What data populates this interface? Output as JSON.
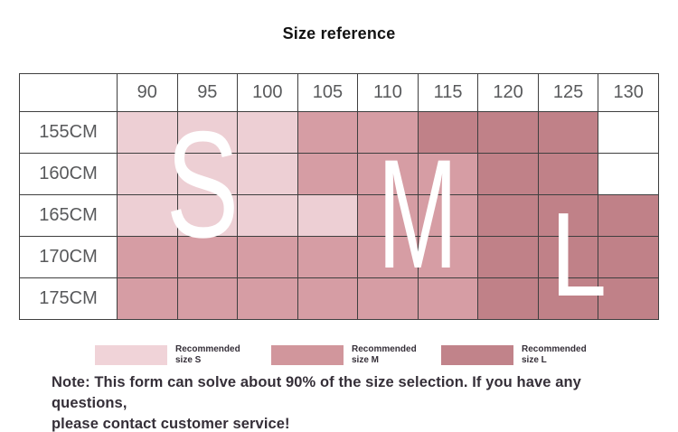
{
  "title": "Size reference",
  "chart_data": {
    "type": "heatmap",
    "title": "Size reference",
    "x_categories": [
      "90",
      "95",
      "100",
      "105",
      "110",
      "115",
      "120",
      "125",
      "130"
    ],
    "y_categories": [
      "155CM",
      "160CM",
      "165CM",
      "170CM",
      "175CM"
    ],
    "cells": [
      [
        "S",
        "S",
        "S",
        "M",
        "M",
        "L",
        "L",
        "L",
        null
      ],
      [
        "S",
        "S",
        "S",
        "M",
        "M",
        "M",
        "L",
        "L",
        null
      ],
      [
        "S",
        "S",
        "S",
        "S",
        "M",
        "M",
        "L",
        "L",
        "L"
      ],
      [
        "M",
        "M",
        "M",
        "M",
        "M",
        "M",
        "L",
        "L",
        "L"
      ],
      [
        "M",
        "M",
        "M",
        "M",
        "M",
        "M",
        "L",
        "L",
        "L"
      ]
    ],
    "legend_entries": [
      "Recommended size S",
      "Recommended size M",
      "Recommended size L"
    ],
    "grid": true,
    "legend_position": "bottom"
  },
  "overlay": {
    "letters": [
      "S",
      "M",
      "L"
    ]
  },
  "legend": [
    {
      "color": "#f0d3d8",
      "line1": "Recommended",
      "line2": "size S"
    },
    {
      "color": "#d1969c",
      "line1": "Recommended",
      "line2": "size M"
    },
    {
      "color": "#c1838a",
      "line1": "Recommended",
      "line2": "size L"
    }
  ],
  "note": {
    "line1": "Note: This form can solve about 90% of the size selection. If you have any questions,",
    "line2": "please contact customer service!"
  },
  "colors": {
    "size_s": "#edcfd4",
    "size_m": "#d69da4",
    "size_l": "#c08188",
    "cell_none": "#ffffff",
    "table_border": "#3f3f3f",
    "header_text": "#58595b",
    "note_text": "#352f38",
    "title_text": "#121212",
    "letter_text": "#ffffff"
  }
}
